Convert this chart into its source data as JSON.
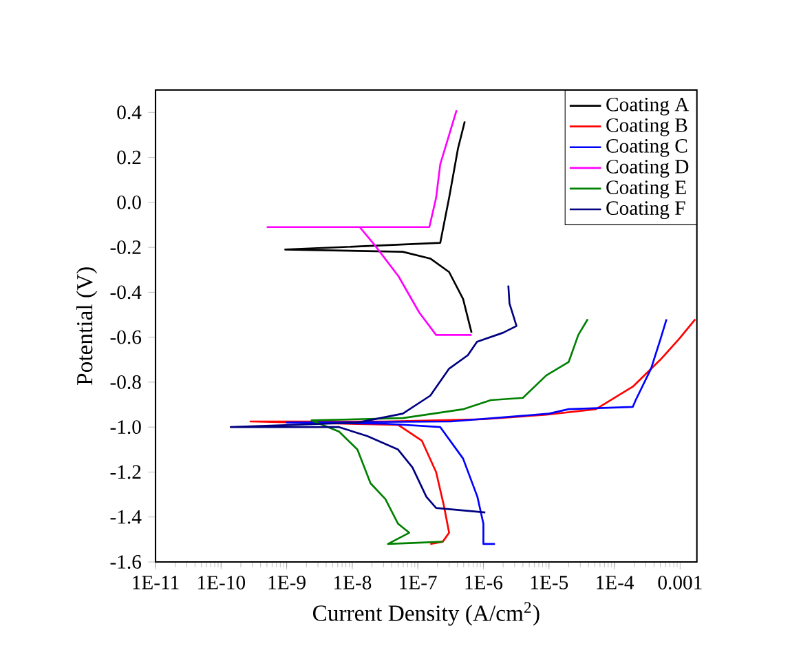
{
  "chart_data": {
    "type": "line",
    "xlabel": "Current Density (A/cm$^{2}$)",
    "ylabel": "Potential (V)",
    "log": "x",
    "legend": "top right",
    "grid": false,
    "marker": "none",
    "line_style": "solid",
    "xlim": [
      1e-11,
      0.0018
    ],
    "ylim": [
      -1.6,
      0.5
    ],
    "xticks": [
      {
        "value": 1e-11,
        "label": "1E-11"
      },
      {
        "value": 1e-10,
        "label": "1E-10"
      },
      {
        "value": 1e-09,
        "label": "1E-9"
      },
      {
        "value": 1e-08,
        "label": "1E-8"
      },
      {
        "value": 1e-07,
        "label": "1E-7"
      },
      {
        "value": 1e-06,
        "label": "1E-6"
      },
      {
        "value": 1e-05,
        "label": "1E-5"
      },
      {
        "value": 0.0001,
        "label": "1E-4"
      },
      0.001
    ],
    "yticks": [
      -1.6,
      -1.4,
      -1.2,
      {
        "value": -1,
        "label": "-1.0"
      },
      -0.8,
      -0.6,
      -0.4,
      -0.2,
      {
        "value": 0,
        "label": "0.0"
      },
      0.2,
      0.4
    ],
    "series": [
      {
        "name": "Coating A",
        "color": "#000000",
        "x": [
          6.6e-07,
          4.9e-07,
          3e-07,
          1.55e-07,
          5.9e-08,
          9.5e-10,
          2.2e-07,
          3e-07,
          4.1e-07,
          5.2e-07
        ],
        "values": [
          -0.58,
          -0.43,
          -0.31,
          -0.25,
          -0.22,
          -0.21,
          -0.18,
          0.02,
          0.24,
          0.36
        ]
      },
      {
        "name": "Coating B",
        "color": "#ff0000",
        "x": [
          1.55e-07,
          2.4e-07,
          3e-07,
          2.5e-07,
          1.9e-07,
          1.15e-07,
          5e-08,
          2.8e-10,
          3.2e-08,
          1e-06,
          9.1e-06,
          5.2e-05,
          0.00019,
          0.0005,
          0.00095,
          0.0017
        ],
        "values": [
          -1.52,
          -1.51,
          -1.47,
          -1.35,
          -1.2,
          -1.06,
          -0.99,
          -0.975,
          -0.975,
          -0.965,
          -0.945,
          -0.92,
          -0.82,
          -0.7,
          -0.61,
          -0.52
        ]
      },
      {
        "name": "Coating C",
        "color": "#0000ff",
        "x": [
          1.5e-06,
          1e-06,
          1e-06,
          8.1e-07,
          4.9e-07,
          2.2e-07,
          3.2e-08,
          1e-09,
          3.2e-07,
          1e-05,
          2e-05,
          0.00019,
          0.00021,
          0.00036,
          0.0005,
          0.00062
        ],
        "values": [
          -1.52,
          -1.52,
          -1.43,
          -1.31,
          -1.14,
          -1.0,
          -0.985,
          -0.98,
          -0.975,
          -0.94,
          -0.92,
          -0.91,
          -0.88,
          -0.74,
          -0.61,
          -0.52
        ]
      },
      {
        "name": "Coating D",
        "color": "#ff00ff",
        "x": [
          6.6e-07,
          1.9e-07,
          1.05e-07,
          5.1e-08,
          2.2e-08,
          1.3e-08,
          5.1e-10,
          1.5e-07,
          1.9e-07,
          2.2e-07,
          3.9e-07
        ],
        "values": [
          -0.59,
          -0.59,
          -0.49,
          -0.33,
          -0.19,
          -0.11,
          -0.11,
          -0.11,
          0.02,
          0.17,
          0.41
        ]
      },
      {
        "name": "Coating E",
        "color": "#008000",
        "x": [
          2.4e-07,
          3.5e-08,
          7.4e-08,
          5e-08,
          3.2e-08,
          1.9e-08,
          1.2e-08,
          6.3e-09,
          2.4e-09,
          5.9e-08,
          5e-07,
          1.3e-06,
          4e-06,
          9.1e-06,
          2e-05,
          2.8e-05,
          3.9e-05
        ],
        "values": [
          -1.51,
          -1.52,
          -1.47,
          -1.43,
          -1.32,
          -1.25,
          -1.1,
          -1.02,
          -0.97,
          -0.96,
          -0.92,
          -0.88,
          -0.87,
          -0.77,
          -0.71,
          -0.59,
          -0.52
        ]
      },
      {
        "name": "Coating F",
        "color": "#000080",
        "x": [
          1.07e-06,
          1.9e-07,
          1.35e-07,
          8.3e-08,
          5e-08,
          1.7e-08,
          6.3e-09,
          1.4e-10,
          1.2e-08,
          5.9e-08,
          1.55e-07,
          3e-07,
          5.8e-07,
          8e-07,
          2e-06,
          3.2e-06,
          2.5e-06,
          2.4e-06
        ],
        "values": [
          -1.38,
          -1.36,
          -1.31,
          -1.18,
          -1.1,
          -1.04,
          -1.0,
          -1.0,
          -0.98,
          -0.94,
          -0.86,
          -0.74,
          -0.68,
          -0.62,
          -0.58,
          -0.55,
          -0.45,
          -0.37
        ]
      }
    ]
  }
}
